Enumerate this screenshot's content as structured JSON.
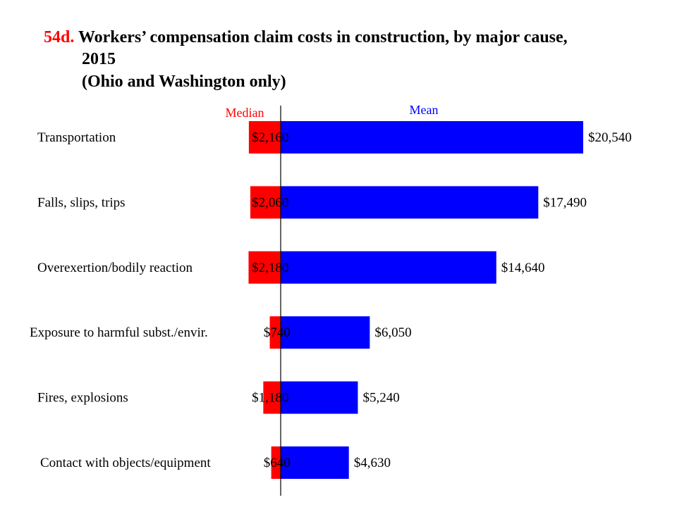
{
  "chart_data": {
    "type": "bar",
    "orientation": "horizontal",
    "title_prefix": "54d.",
    "title_line1": "Workers’ compensation claim costs in construction, by major cause,",
    "title_line2": "2015",
    "subtitle": "(Ohio and Washington only)",
    "categories": [
      "Transportation",
      "Falls, slips, trips",
      "Overexertion/bodily reaction",
      "Exposure to harmful subst./envir.",
      "Fires, explosions",
      "Contact with objects/equipment"
    ],
    "series": [
      {
        "name": "Median",
        "direction": "left",
        "values": [
          2160,
          2060,
          2180,
          740,
          1180,
          640
        ],
        "labels": [
          "$2,160",
          "$2,060",
          "$2,180",
          "$740",
          "$1,180",
          "$640"
        ]
      },
      {
        "name": "Mean",
        "direction": "right",
        "values": [
          20540,
          17490,
          14640,
          6050,
          5240,
          4630
        ],
        "labels": [
          "$20,540",
          "$17,490",
          "$14,640",
          "$6,050",
          "$5,240",
          "$4,630"
        ]
      }
    ],
    "colors": {
      "title_prefix": "#ff0000",
      "median": "#ff0000",
      "mean": "#0000ff",
      "median_label": "#ff0000",
      "mean_label": "#0000ff",
      "axis": "#000000"
    },
    "grid": false,
    "legend_placement": "top"
  }
}
